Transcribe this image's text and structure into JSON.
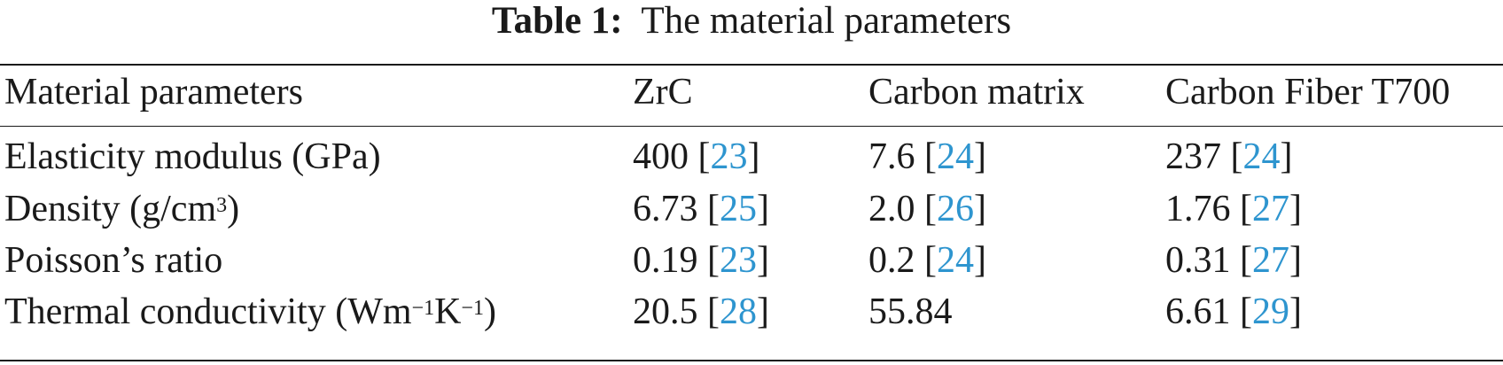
{
  "caption": {
    "label": "Table 1:",
    "title": "The material parameters"
  },
  "table": {
    "headers": [
      "Material parameters",
      "ZrC",
      "Carbon matrix",
      "Carbon Fiber T700"
    ],
    "rows": [
      {
        "param": {
          "pre": "Elasticity modulus (GPa)",
          "sup1": "",
          "mid": "",
          "sup2": "",
          "post": ""
        },
        "zrc": {
          "value": "400",
          "ref": "23"
        },
        "matrix": {
          "value": "7.6",
          "ref": "24"
        },
        "fiber": {
          "value": "237",
          "ref": "24"
        }
      },
      {
        "param": {
          "pre": "Density (g/cm",
          "sup1": "3",
          "mid": ")",
          "sup2": "",
          "post": ""
        },
        "zrc": {
          "value": "6.73",
          "ref": "25"
        },
        "matrix": {
          "value": "2.0",
          "ref": "26"
        },
        "fiber": {
          "value": "1.76",
          "ref": "27"
        }
      },
      {
        "param": {
          "pre": "Poisson’s ratio",
          "sup1": "",
          "mid": "",
          "sup2": "",
          "post": ""
        },
        "zrc": {
          "value": "0.19",
          "ref": "23"
        },
        "matrix": {
          "value": "0.2",
          "ref": "24"
        },
        "fiber": {
          "value": "0.31",
          "ref": "27"
        }
      },
      {
        "param": {
          "pre": "Thermal conductivity (Wm",
          "sup1": "−1",
          "mid": "K",
          "sup2": "−1",
          "post": ")"
        },
        "zrc": {
          "value": "20.5",
          "ref": "28"
        },
        "matrix": {
          "value": "55.84",
          "ref": ""
        },
        "fiber": {
          "value": "6.61",
          "ref": "29"
        }
      }
    ]
  },
  "colors": {
    "text": "#1a1a1a",
    "reference_link": "#2e95cf",
    "background": "#ffffff"
  }
}
